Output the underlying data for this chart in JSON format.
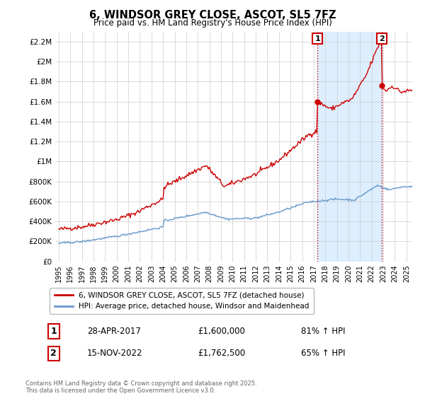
{
  "title": "6, WINDSOR GREY CLOSE, ASCOT, SL5 7FZ",
  "subtitle": "Price paid vs. HM Land Registry's House Price Index (HPI)",
  "ylabel_ticks": [
    "£0",
    "£200K",
    "£400K",
    "£600K",
    "£800K",
    "£1M",
    "£1.2M",
    "£1.4M",
    "£1.6M",
    "£1.8M",
    "£2M",
    "£2.2M"
  ],
  "ytick_values": [
    0,
    200000,
    400000,
    600000,
    800000,
    1000000,
    1200000,
    1400000,
    1600000,
    1800000,
    2000000,
    2200000
  ],
  "ylim": [
    0,
    2300000
  ],
  "red_color": "#cc0000",
  "blue_color": "#6699cc",
  "shade_color": "#ddeeff",
  "ann1_x": 2017.32,
  "ann1_y": 1600000,
  "ann2_x": 2022.88,
  "ann2_y": 1762500,
  "legend_line1": "6, WINDSOR GREY CLOSE, ASCOT, SL5 7FZ (detached house)",
  "legend_line2": "HPI: Average price, detached house, Windsor and Maidenhead",
  "ann1_date": "28-APR-2017",
  "ann1_price": "£1,600,000",
  "ann1_hpi": "81% ↑ HPI",
  "ann2_date": "15-NOV-2022",
  "ann2_price": "£1,762,500",
  "ann2_hpi": "65% ↑ HPI",
  "footnote": "Contains HM Land Registry data © Crown copyright and database right 2025.\nThis data is licensed under the Open Government Licence v3.0.",
  "xmin": 1995,
  "xmax": 2025.5
}
